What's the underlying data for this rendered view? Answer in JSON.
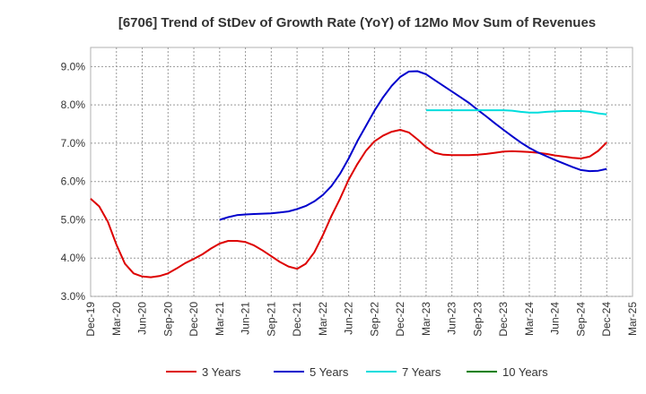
{
  "chart_data": {
    "type": "line",
    "title": "[6706]  Trend of StDev of Growth Rate (YoY) of 12Mo Mov Sum of Revenues",
    "xlabel": "",
    "ylabel": "",
    "ylim": [
      3.0,
      9.5
    ],
    "yticks": [
      3.0,
      4.0,
      5.0,
      6.0,
      7.0,
      8.0,
      9.0
    ],
    "ytick_labels": [
      "3.0%",
      "4.0%",
      "5.0%",
      "6.0%",
      "7.0%",
      "8.0%",
      "9.0%"
    ],
    "x_start": "Dec-19",
    "x_tick_labels": [
      "Dec-19",
      "Mar-20",
      "Jun-20",
      "Sep-20",
      "Dec-20",
      "Mar-21",
      "Jun-21",
      "Sep-21",
      "Dec-21",
      "Mar-22",
      "Jun-22",
      "Sep-22",
      "Dec-22",
      "Mar-23",
      "Jun-23",
      "Sep-23",
      "Dec-23",
      "Mar-24",
      "Jun-24",
      "Sep-24",
      "Dec-24",
      "Mar-25"
    ],
    "grid": true,
    "legend_position": "bottom",
    "series": [
      {
        "name": "3 Years",
        "color": "#dd0000",
        "start_index": 0,
        "values": [
          5.55,
          5.35,
          4.95,
          4.35,
          3.85,
          3.6,
          3.52,
          3.5,
          3.53,
          3.6,
          3.73,
          3.87,
          3.98,
          4.1,
          4.25,
          4.38,
          4.45,
          4.45,
          4.42,
          4.33,
          4.2,
          4.05,
          3.9,
          3.78,
          3.72,
          3.85,
          4.15,
          4.6,
          5.1,
          5.55,
          6.05,
          6.45,
          6.8,
          7.05,
          7.2,
          7.3,
          7.35,
          7.28,
          7.1,
          6.9,
          6.75,
          6.7,
          6.69,
          6.69,
          6.69,
          6.7,
          6.72,
          6.75,
          6.78,
          6.79,
          6.78,
          6.77,
          6.75,
          6.72,
          6.68,
          6.65,
          6.62,
          6.6,
          6.65,
          6.8,
          7.02
        ]
      },
      {
        "name": "5 Years",
        "color": "#0000cc",
        "start_index": 15,
        "values": [
          5.0,
          5.07,
          5.12,
          5.14,
          5.15,
          5.16,
          5.17,
          5.19,
          5.22,
          5.28,
          5.36,
          5.48,
          5.65,
          5.88,
          6.2,
          6.6,
          7.05,
          7.45,
          7.85,
          8.2,
          8.5,
          8.73,
          8.87,
          8.88,
          8.8,
          8.65,
          8.5,
          8.35,
          8.2,
          8.05,
          7.87,
          7.7,
          7.52,
          7.35,
          7.18,
          7.02,
          6.88,
          6.76,
          6.66,
          6.56,
          6.47,
          6.38,
          6.3,
          6.27,
          6.28,
          6.33
        ]
      },
      {
        "name": "7 Years",
        "color": "#00dddd",
        "start_index": 39,
        "values": [
          7.86,
          7.86,
          7.86,
          7.86,
          7.86,
          7.86,
          7.86,
          7.86,
          7.86,
          7.86,
          7.85,
          7.82,
          7.8,
          7.8,
          7.82,
          7.83,
          7.84,
          7.84,
          7.84,
          7.82,
          7.78,
          7.75
        ]
      },
      {
        "name": "10 Years",
        "color": "#008000",
        "start_index": 0,
        "values": []
      }
    ]
  }
}
